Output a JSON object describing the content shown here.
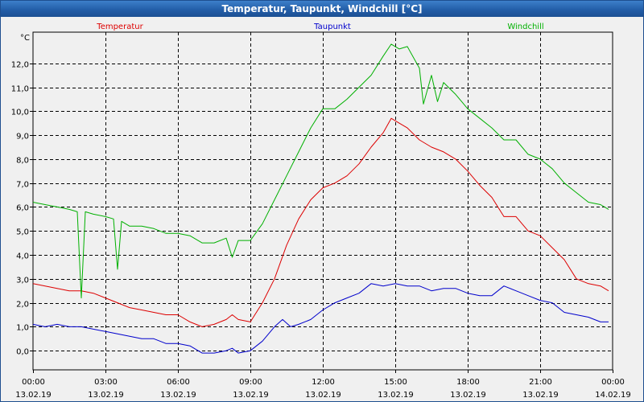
{
  "window": {
    "title": "Temperatur, Taupunkt, Windchill [°C]"
  },
  "colors": {
    "temperatur": "#dd0000",
    "taupunkt": "#0000cc",
    "windchill": "#00b000",
    "grid": "#000000",
    "background": "#f0f0f0"
  },
  "chart_data": {
    "type": "line",
    "title": "Temperatur, Taupunkt, Windchill [°C]",
    "ylabel": "°C",
    "xlabel": "",
    "xlim": [
      "2019-02-13 00:00",
      "2019-02-14 00:00"
    ],
    "ylim": [
      -0.8,
      13.3
    ],
    "grid": true,
    "legend_placement": "top",
    "y_ticks": [
      "0,0",
      "1,0",
      "2,0",
      "3,0",
      "4,0",
      "5,0",
      "6,0",
      "7,0",
      "8,0",
      "9,0",
      "10,0",
      "11,0",
      "12,0"
    ],
    "x_ticks": [
      {
        "time": "00:00",
        "date": "13.02.19"
      },
      {
        "time": "03:00",
        "date": "13.02.19"
      },
      {
        "time": "06:00",
        "date": "13.02.19"
      },
      {
        "time": "09:00",
        "date": "13.02.19"
      },
      {
        "time": "12:00",
        "date": "13.02.19"
      },
      {
        "time": "15:00",
        "date": "13.02.19"
      },
      {
        "time": "18:00",
        "date": "13.02.19"
      },
      {
        "time": "21:00",
        "date": "13.02.19"
      },
      {
        "time": "00:00",
        "date": "14.02.19"
      }
    ],
    "series": [
      {
        "name": "Temperatur",
        "color": "#dd0000",
        "points": [
          [
            "00:00",
            2.8
          ],
          [
            "00:30",
            2.7
          ],
          [
            "01:00",
            2.6
          ],
          [
            "01:30",
            2.5
          ],
          [
            "02:00",
            2.5
          ],
          [
            "02:30",
            2.4
          ],
          [
            "03:00",
            2.2
          ],
          [
            "03:30",
            2.0
          ],
          [
            "04:00",
            1.8
          ],
          [
            "04:30",
            1.7
          ],
          [
            "05:00",
            1.6
          ],
          [
            "05:30",
            1.5
          ],
          [
            "06:00",
            1.5
          ],
          [
            "06:30",
            1.2
          ],
          [
            "07:00",
            1.0
          ],
          [
            "07:30",
            1.1
          ],
          [
            "08:00",
            1.3
          ],
          [
            "08:15",
            1.5
          ],
          [
            "08:30",
            1.3
          ],
          [
            "09:00",
            1.2
          ],
          [
            "09:30",
            2.0
          ],
          [
            "10:00",
            3.0
          ],
          [
            "10:30",
            4.4
          ],
          [
            "11:00",
            5.5
          ],
          [
            "11:30",
            6.3
          ],
          [
            "12:00",
            6.8
          ],
          [
            "12:30",
            7.0
          ],
          [
            "13:00",
            7.3
          ],
          [
            "13:30",
            7.8
          ],
          [
            "14:00",
            8.5
          ],
          [
            "14:30",
            9.1
          ],
          [
            "14:50",
            9.7
          ],
          [
            "15:10",
            9.5
          ],
          [
            "15:30",
            9.3
          ],
          [
            "16:00",
            8.8
          ],
          [
            "16:30",
            8.5
          ],
          [
            "17:00",
            8.3
          ],
          [
            "17:30",
            8.0
          ],
          [
            "18:00",
            7.5
          ],
          [
            "18:30",
            6.9
          ],
          [
            "19:00",
            6.4
          ],
          [
            "19:30",
            5.6
          ],
          [
            "20:00",
            5.6
          ],
          [
            "20:30",
            5.0
          ],
          [
            "21:00",
            4.8
          ],
          [
            "21:30",
            4.3
          ],
          [
            "22:00",
            3.8
          ],
          [
            "22:30",
            3.0
          ],
          [
            "23:00",
            2.8
          ],
          [
            "23:30",
            2.7
          ],
          [
            "23:50",
            2.5
          ]
        ]
      },
      {
        "name": "Taupunkt",
        "color": "#0000cc",
        "points": [
          [
            "00:00",
            1.1
          ],
          [
            "00:30",
            1.0
          ],
          [
            "01:00",
            1.1
          ],
          [
            "01:30",
            1.0
          ],
          [
            "02:00",
            1.0
          ],
          [
            "02:30",
            0.9
          ],
          [
            "03:00",
            0.8
          ],
          [
            "03:30",
            0.7
          ],
          [
            "04:00",
            0.6
          ],
          [
            "04:30",
            0.5
          ],
          [
            "05:00",
            0.5
          ],
          [
            "05:30",
            0.3
          ],
          [
            "06:00",
            0.3
          ],
          [
            "06:30",
            0.2
          ],
          [
            "07:00",
            -0.1
          ],
          [
            "07:30",
            -0.1
          ],
          [
            "08:00",
            0.0
          ],
          [
            "08:15",
            0.1
          ],
          [
            "08:30",
            -0.1
          ],
          [
            "09:00",
            0.0
          ],
          [
            "09:30",
            0.4
          ],
          [
            "10:00",
            1.0
          ],
          [
            "10:20",
            1.3
          ],
          [
            "10:40",
            1.0
          ],
          [
            "11:00",
            1.1
          ],
          [
            "11:30",
            1.3
          ],
          [
            "12:00",
            1.7
          ],
          [
            "12:30",
            2.0
          ],
          [
            "13:00",
            2.2
          ],
          [
            "13:30",
            2.4
          ],
          [
            "14:00",
            2.8
          ],
          [
            "14:30",
            2.7
          ],
          [
            "15:00",
            2.8
          ],
          [
            "15:30",
            2.7
          ],
          [
            "16:00",
            2.7
          ],
          [
            "16:30",
            2.5
          ],
          [
            "17:00",
            2.6
          ],
          [
            "17:30",
            2.6
          ],
          [
            "18:00",
            2.4
          ],
          [
            "18:30",
            2.3
          ],
          [
            "19:00",
            2.3
          ],
          [
            "19:30",
            2.7
          ],
          [
            "20:00",
            2.5
          ],
          [
            "20:30",
            2.3
          ],
          [
            "21:00",
            2.1
          ],
          [
            "21:30",
            2.0
          ],
          [
            "22:00",
            1.6
          ],
          [
            "22:30",
            1.5
          ],
          [
            "23:00",
            1.4
          ],
          [
            "23:30",
            1.2
          ],
          [
            "23:50",
            1.2
          ]
        ]
      },
      {
        "name": "Windchill",
        "color": "#00b000",
        "points": [
          [
            "00:00",
            6.2
          ],
          [
            "00:30",
            6.1
          ],
          [
            "01:00",
            6.0
          ],
          [
            "01:30",
            5.9
          ],
          [
            "01:50",
            5.8
          ],
          [
            "02:00",
            2.2
          ],
          [
            "02:10",
            5.8
          ],
          [
            "02:30",
            5.7
          ],
          [
            "03:00",
            5.6
          ],
          [
            "03:20",
            5.5
          ],
          [
            "03:30",
            3.4
          ],
          [
            "03:40",
            5.4
          ],
          [
            "04:00",
            5.2
          ],
          [
            "04:30",
            5.2
          ],
          [
            "05:00",
            5.1
          ],
          [
            "05:30",
            4.9
          ],
          [
            "06:00",
            4.9
          ],
          [
            "06:30",
            4.8
          ],
          [
            "07:00",
            4.5
          ],
          [
            "07:30",
            4.5
          ],
          [
            "08:00",
            4.7
          ],
          [
            "08:15",
            3.9
          ],
          [
            "08:30",
            4.6
          ],
          [
            "09:00",
            4.6
          ],
          [
            "09:30",
            5.3
          ],
          [
            "10:00",
            6.3
          ],
          [
            "10:30",
            7.3
          ],
          [
            "11:00",
            8.3
          ],
          [
            "11:30",
            9.3
          ],
          [
            "12:00",
            10.1
          ],
          [
            "12:30",
            10.1
          ],
          [
            "13:00",
            10.5
          ],
          [
            "13:30",
            11.0
          ],
          [
            "14:00",
            11.5
          ],
          [
            "14:30",
            12.3
          ],
          [
            "14:50",
            12.8
          ],
          [
            "15:10",
            12.6
          ],
          [
            "15:30",
            12.7
          ],
          [
            "16:00",
            11.8
          ],
          [
            "16:10",
            10.3
          ],
          [
            "16:30",
            11.5
          ],
          [
            "16:45",
            10.4
          ],
          [
            "17:00",
            11.2
          ],
          [
            "17:30",
            10.7
          ],
          [
            "18:00",
            10.1
          ],
          [
            "18:30",
            9.7
          ],
          [
            "19:00",
            9.3
          ],
          [
            "19:30",
            8.8
          ],
          [
            "20:00",
            8.8
          ],
          [
            "20:30",
            8.2
          ],
          [
            "21:00",
            8.0
          ],
          [
            "21:30",
            7.6
          ],
          [
            "22:00",
            7.0
          ],
          [
            "22:30",
            6.6
          ],
          [
            "23:00",
            6.2
          ],
          [
            "23:30",
            6.1
          ],
          [
            "23:50",
            5.9
          ]
        ]
      }
    ]
  }
}
